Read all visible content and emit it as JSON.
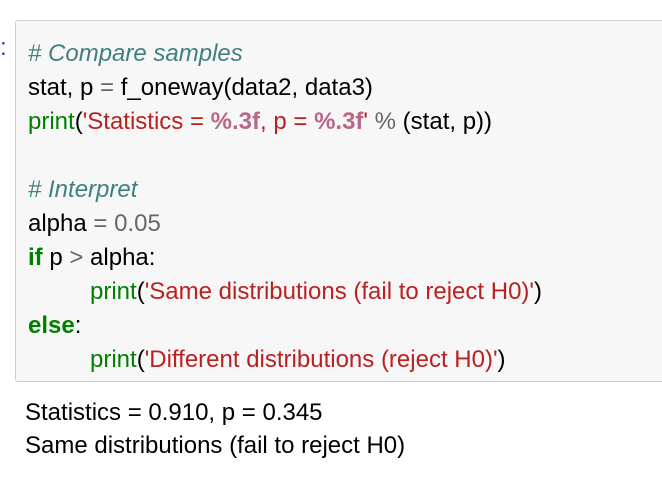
{
  "prompt": ":",
  "code": {
    "lines": [
      [
        "# Compare samples"
      ],
      [
        "stat, p ",
        "=",
        " f_oneway(data2, data3)"
      ],
      [
        "print",
        "(",
        "'Statistics = ",
        "%.3f",
        ", p = ",
        "%.3f",
        "' ",
        "%",
        " (stat, p))"
      ],
      [],
      [
        "# Interpret"
      ],
      [
        "alpha ",
        "=",
        " 0.05"
      ],
      [
        "if",
        " p ",
        ">",
        " alpha:"
      ],
      [
        "print",
        "(",
        "'Same distributions (fail to reject H0)'",
        ")"
      ],
      [
        "else",
        ":"
      ],
      [
        "print",
        "(",
        "'Different distributions (reject H0)'",
        ")"
      ]
    ]
  },
  "output": {
    "lines": [
      "Statistics = 0.910, p = 0.345",
      "Same distributions (fail to reject H0)"
    ]
  }
}
